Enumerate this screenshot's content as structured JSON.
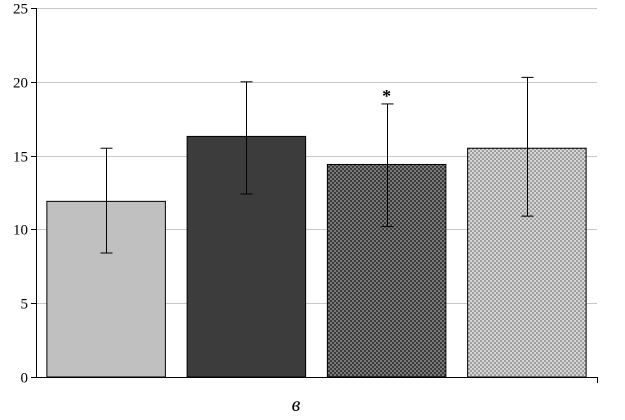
{
  "chart_data": {
    "type": "bar",
    "categories": [
      "",
      "",
      "",
      ""
    ],
    "values": [
      11.9,
      16.3,
      14.4,
      15.5
    ],
    "error_upper": [
      15.5,
      20.0,
      18.5,
      20.3
    ],
    "error_lower": [
      8.4,
      12.4,
      10.2,
      10.9
    ],
    "ylim": [
      0,
      25
    ],
    "yticks": [
      0,
      5,
      10,
      15,
      20,
      25
    ],
    "grid": true,
    "annotations": [
      {
        "bar_index": 2,
        "text": "*"
      }
    ],
    "panel_label": "в",
    "bar_styles": [
      {
        "fill": "#c0c0c0",
        "pattern": "solid"
      },
      {
        "fill": "#3c3c3c",
        "pattern": "solid"
      },
      {
        "fill": "#3a3a3a",
        "pattern": "dots-light"
      },
      {
        "fill": "#d0d0d0",
        "pattern": "dots-dark"
      }
    ]
  }
}
